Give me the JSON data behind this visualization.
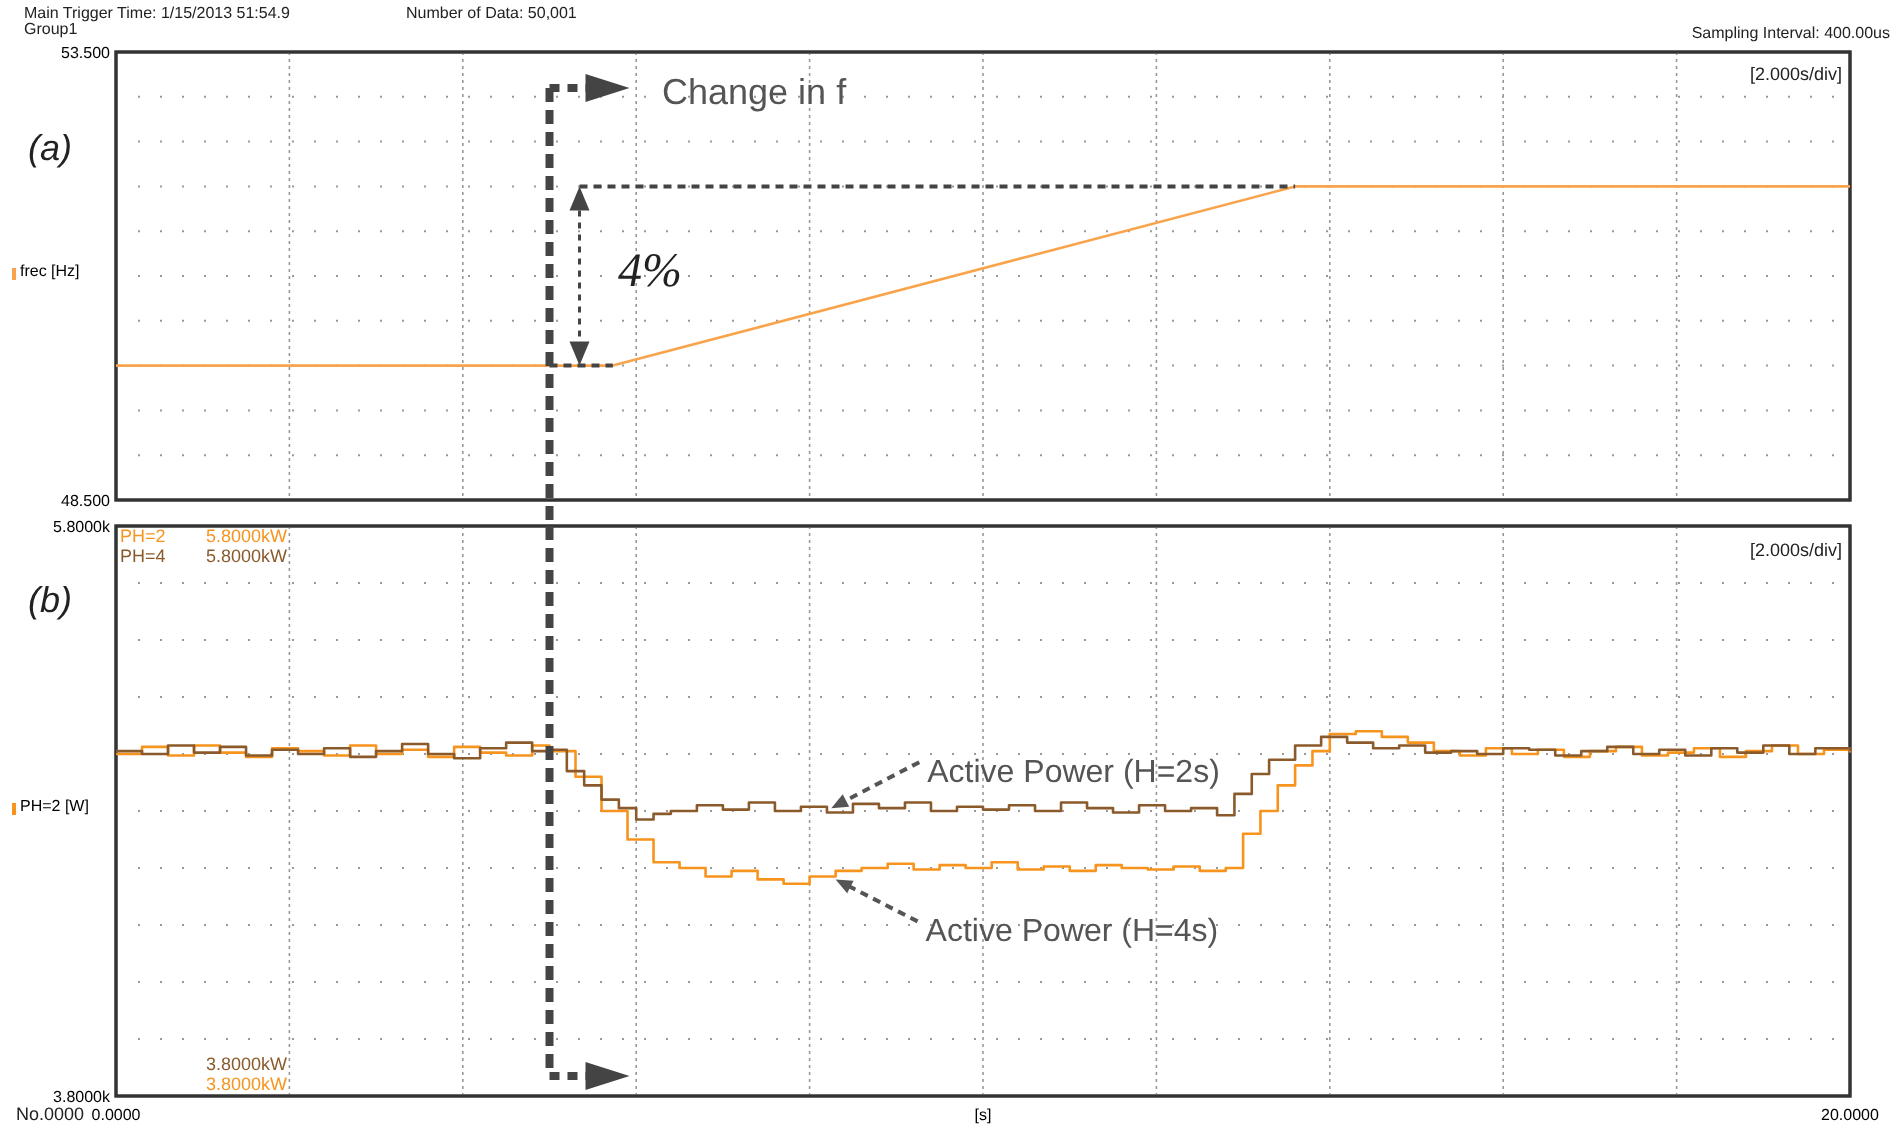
{
  "chart_data": [
    {
      "type": "line",
      "ylabel": "frec [Hz]",
      "annotations": [
        "Main  Trigger Time: 1/15/2013 51:54.9",
        "Group1",
        "Number of Data: 50,001",
        "Sampling Interval: 400.00us",
        "(a)",
        "[2.000s/div]",
        "Change in f",
        "4%"
      ],
      "series": [
        {
          "color": "#f9a44c",
          "x": [
            0,
            5.73,
            13.6,
            20
          ],
          "values": [
            50,
            50,
            52,
            52
          ]
        }
      ],
      "xlim": [
        0,
        20
      ],
      "xticks": [
        {
          "value": 0,
          "label": null
        },
        {
          "value": 2,
          "label": null
        },
        {
          "value": 4,
          "label": null
        },
        {
          "value": 6,
          "label": null
        },
        {
          "value": 8,
          "label": null
        },
        {
          "value": 10,
          "label": null
        },
        {
          "value": 12,
          "label": null
        },
        {
          "value": 14,
          "label": null
        },
        {
          "value": 16,
          "label": null
        },
        {
          "value": 18,
          "label": null
        },
        {
          "value": 20,
          "label": null
        }
      ],
      "ylim": [
        48.5,
        53.5
      ],
      "yticks": [
        {
          "value": 48.5,
          "label": "48.500"
        },
        {
          "value": 49,
          "label": null
        },
        {
          "value": 49.5,
          "label": null
        },
        {
          "value": 50,
          "label": null
        },
        {
          "value": 50.5,
          "label": null
        },
        {
          "value": 51,
          "label": null
        },
        {
          "value": 51.5,
          "label": null
        },
        {
          "value": 52,
          "label": null
        },
        {
          "value": 52.5,
          "label": null
        },
        {
          "value": 53,
          "label": null
        },
        {
          "value": 53.5,
          "label": "53.500"
        }
      ],
      "ref_lines": [
        {
          "axis": "x",
          "value": 5,
          "color": "#444444",
          "line_style": "dashed"
        }
      ],
      "tick_labels": "y",
      "grid": true,
      "legend": false
    },
    {
      "type": "step",
      "xlabel": "[s]",
      "ylabel": "PH=2 [W]",
      "annotations": [
        "(b)",
        "[2.000s/div]",
        "5.8000kW",
        "5.8000kW",
        "3.8000kW",
        "3.8000kW",
        "No.0000",
        {
          "text": "Active Power (H=2s)",
          "x": 8.25,
          "y": 4810
        },
        {
          "text": "Active Power (H=4s)",
          "x": 8.3,
          "y": 4560
        }
      ],
      "series": [
        {
          "name": "PH=2",
          "color": "#f7941d",
          "x": [
            0,
            0.3,
            0.6,
            0.9,
            1.2,
            1.5,
            1.8,
            2.1,
            2.4,
            2.7,
            3.0,
            3.3,
            3.6,
            3.9,
            4.2,
            4.5,
            4.8,
            5.0,
            5.3,
            5.6,
            5.9,
            6.2,
            6.5,
            6.8,
            7.1,
            7.4,
            7.7,
            8.0,
            8.3,
            8.6,
            8.9,
            9.2,
            9.5,
            9.8,
            10.1,
            10.4,
            10.7,
            11.0,
            11.3,
            11.6,
            11.9,
            12.2,
            12.5,
            12.8,
            13.0,
            13.2,
            13.4,
            13.6,
            13.8,
            14.0,
            14.3,
            14.6,
            14.9,
            15.2,
            15.5,
            15.8,
            16.1,
            16.4,
            16.7,
            17.0,
            17.3,
            17.6,
            17.9,
            18.2,
            18.5,
            18.8,
            19.1,
            19.4,
            19.7,
            20.0
          ],
          "values": [
            5000,
            5025,
            4995,
            5030,
            5005,
            4990,
            5020,
            5010,
            4995,
            5030,
            5000,
            5015,
            4990,
            5025,
            5005,
            4995,
            5030,
            5010,
            4920,
            4800,
            4700,
            4620,
            4600,
            4570,
            4590,
            4560,
            4545,
            4570,
            4590,
            4600,
            4615,
            4595,
            4610,
            4600,
            4620,
            4595,
            4605,
            4590,
            4610,
            4600,
            4595,
            4605,
            4590,
            4600,
            4720,
            4800,
            4890,
            4960,
            5010,
            5070,
            5080,
            5060,
            5040,
            5010,
            4995,
            5020,
            5000,
            5015,
            4990,
            5010,
            5025,
            4995,
            5005,
            5020,
            4990,
            5010,
            5030,
            5000,
            5015,
            5005
          ]
        },
        {
          "name": "PH=4",
          "color": "#8b5a2b",
          "x": [
            0,
            0.3,
            0.6,
            0.9,
            1.2,
            1.5,
            1.8,
            2.1,
            2.4,
            2.7,
            3.0,
            3.3,
            3.6,
            3.9,
            4.2,
            4.5,
            4.8,
            5.0,
            5.2,
            5.4,
            5.6,
            5.8,
            6.0,
            6.2,
            6.4,
            6.7,
            7.0,
            7.3,
            7.6,
            7.9,
            8.2,
            8.5,
            8.8,
            9.1,
            9.4,
            9.7,
            10.0,
            10.3,
            10.6,
            10.9,
            11.2,
            11.5,
            11.8,
            12.1,
            12.4,
            12.7,
            12.9,
            13.1,
            13.3,
            13.6,
            13.9,
            14.2,
            14.5,
            14.8,
            15.1,
            15.4,
            15.7,
            16.0,
            16.3,
            16.6,
            16.9,
            17.2,
            17.5,
            17.8,
            18.1,
            18.4,
            18.7,
            19.0,
            19.3,
            19.6,
            20.0
          ],
          "values": [
            5010,
            5000,
            5030,
            5005,
            5025,
            4995,
            5015,
            5000,
            5020,
            4990,
            5010,
            5035,
            5000,
            4985,
            5020,
            5040,
            5010,
            5015,
            4940,
            4890,
            4840,
            4810,
            4770,
            4790,
            4800,
            4820,
            4805,
            4830,
            4800,
            4815,
            4795,
            4825,
            4810,
            4830,
            4800,
            4815,
            4805,
            4820,
            4800,
            4830,
            4810,
            4795,
            4820,
            4800,
            4810,
            4785,
            4860,
            4930,
            4980,
            5030,
            5060,
            5040,
            5020,
            5030,
            5005,
            5010,
            5000,
            5020,
            5015,
            4995,
            5010,
            5025,
            5000,
            5015,
            4995,
            5020,
            5005,
            5030,
            5000,
            5020,
            5010
          ]
        }
      ],
      "xlim": [
        0,
        20
      ],
      "xticks": [
        {
          "value": 0,
          "label": "0.0000"
        },
        {
          "value": 2,
          "label": null
        },
        {
          "value": 4,
          "label": null
        },
        {
          "value": 6,
          "label": null
        },
        {
          "value": 8,
          "label": null
        },
        {
          "value": 10,
          "label": null
        },
        {
          "value": 12,
          "label": null
        },
        {
          "value": 14,
          "label": null
        },
        {
          "value": 16,
          "label": null
        },
        {
          "value": 18,
          "label": null
        },
        {
          "value": 20,
          "label": "20.0000"
        }
      ],
      "ylim": [
        3800,
        5800
      ],
      "yticks": [
        {
          "value": 3800,
          "label": "3.8000k"
        },
        {
          "value": 4000,
          "label": null
        },
        {
          "value": 4200,
          "label": null
        },
        {
          "value": 4400,
          "label": null
        },
        {
          "value": 4600,
          "label": null
        },
        {
          "value": 4800,
          "label": null
        },
        {
          "value": 5000,
          "label": null
        },
        {
          "value": 5200,
          "label": null
        },
        {
          "value": 5400,
          "label": null
        },
        {
          "value": 5600,
          "label": null
        },
        {
          "value": 5800,
          "label": "5.8000k"
        }
      ],
      "ref_lines": [
        {
          "axis": "x",
          "value": 5,
          "color": "#444444",
          "line_style": "dashed"
        }
      ],
      "grid": true,
      "legend": "top left"
    }
  ]
}
